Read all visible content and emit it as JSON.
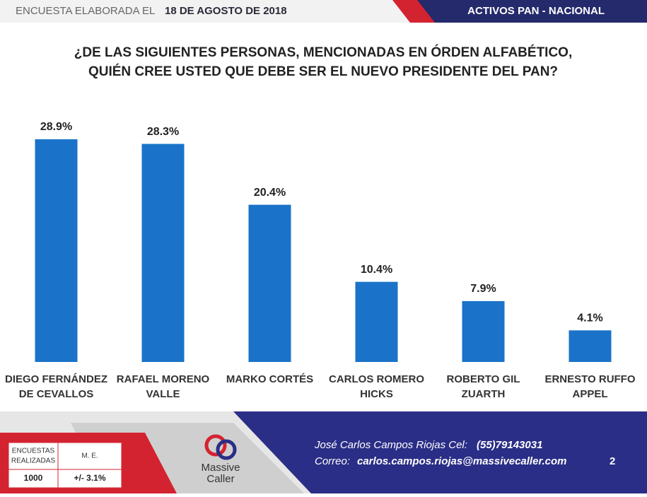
{
  "header": {
    "left": "ENCUESTA ELABORADA EL",
    "date": "18 DE AGOSTO DE 2018",
    "right": "ACTIVOS PAN - NACIONAL"
  },
  "chart_data": {
    "type": "bar",
    "title": [
      "¿DE LAS SIGUIENTES PERSONAS, MENCIONADAS EN ÓRDEN ALFABÉTICO,",
      "QUIÉN CREE USTED QUE DEBE SER EL NUEVO PRESIDENTE DEL PAN?"
    ],
    "categories": [
      [
        "DIEGO FERNÁNDEZ",
        "DE CEVALLOS"
      ],
      [
        "RAFAEL MORENO",
        "VALLE"
      ],
      [
        "MARKO CORTÉS"
      ],
      [
        "CARLOS ROMERO",
        "HICKS"
      ],
      [
        "ROBERTO GIL",
        "ZUARTH"
      ],
      [
        "ERNESTO RUFFO",
        "APPEL"
      ]
    ],
    "values": [
      28.9,
      28.3,
      20.4,
      10.4,
      7.9,
      4.1
    ],
    "value_labels": [
      "28.9%",
      "28.3%",
      "20.4%",
      "10.4%",
      "7.9%",
      "4.1%"
    ],
    "color": "#1a73c8"
  },
  "footer": {
    "table": {
      "headers": [
        [
          "ENCUESTAS",
          "REALIZADAS"
        ],
        "M. E."
      ],
      "values": [
        "1000",
        "+/- 3.1%"
      ]
    },
    "logo": [
      "Massive",
      "Caller"
    ],
    "contact": {
      "name": "José Carlos Campos Riojas Cel:",
      "phone": "(55)79143031",
      "mail_label": "Correo:",
      "mail": "carlos.campos.riojas@massivecaller.com"
    },
    "page": "2"
  }
}
